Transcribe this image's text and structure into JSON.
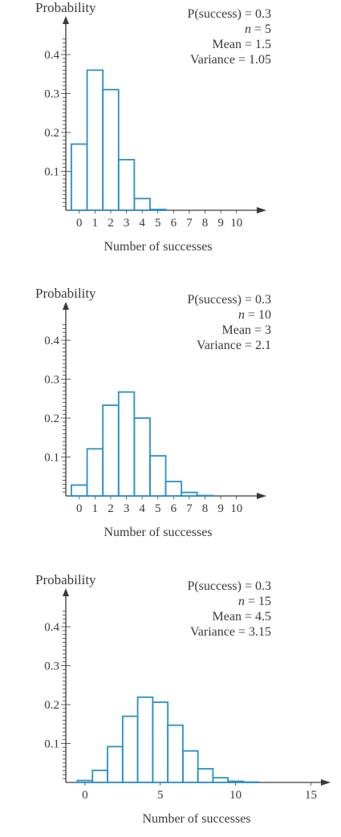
{
  "chart_data": [
    {
      "type": "bar",
      "ylabel": "Probability",
      "xlabel": "Number of successes",
      "annotations": [
        "P(success) = 0.3",
        "n = 5",
        "Mean = 1.5",
        "Variance = 1.05"
      ],
      "x": [
        0,
        1,
        2,
        3,
        4,
        5
      ],
      "values": [
        0.17,
        0.36,
        0.31,
        0.13,
        0.03,
        0.002
      ],
      "xticks": [
        0,
        1,
        2,
        3,
        4,
        5,
        6,
        7,
        8,
        9,
        10
      ],
      "xtick_labels": [
        "0",
        "1",
        "2",
        "3",
        "4",
        "5",
        "6",
        "7",
        "8",
        "9",
        "10"
      ],
      "yticks": [
        0.1,
        0.2,
        0.3,
        0.4
      ],
      "ytick_labels": [
        "0.1",
        "0.2",
        "0.3",
        "0.4"
      ],
      "xlim": [
        -0.5,
        11.8
      ],
      "ylim": [
        0,
        0.45
      ],
      "color": "#2a8fc8"
    },
    {
      "type": "bar",
      "ylabel": "Probability",
      "xlabel": "Number of successes",
      "annotations": [
        "P(success) = 0.3",
        "n = 10",
        "Mean = 3",
        "Variance = 2.1"
      ],
      "x": [
        0,
        1,
        2,
        3,
        4,
        5,
        6,
        7,
        8,
        9,
        10
      ],
      "values": [
        0.028,
        0.121,
        0.233,
        0.267,
        0.2,
        0.103,
        0.037,
        0.009,
        0.001,
        0,
        0
      ],
      "xticks": [
        0,
        1,
        2,
        3,
        4,
        5,
        6,
        7,
        8,
        9,
        10
      ],
      "xtick_labels": [
        "0",
        "1",
        "2",
        "3",
        "4",
        "5",
        "6",
        "7",
        "8",
        "9",
        "10"
      ],
      "yticks": [
        0.1,
        0.2,
        0.3,
        0.4
      ],
      "ytick_labels": [
        "0.1",
        "0.2",
        "0.3",
        "0.4"
      ],
      "xlim": [
        -0.5,
        11.8
      ],
      "ylim": [
        0,
        0.45
      ],
      "color": "#2a8fc8"
    },
    {
      "type": "bar",
      "ylabel": "Probability",
      "xlabel": "Number of successes",
      "annotations": [
        "P(success) = 0.3",
        "n = 15",
        "Mean = 4.5",
        "Variance = 3.15"
      ],
      "x": [
        0,
        1,
        2,
        3,
        4,
        5,
        6,
        7,
        8,
        9,
        10,
        11,
        12,
        13,
        14,
        15
      ],
      "values": [
        0.005,
        0.031,
        0.092,
        0.17,
        0.219,
        0.206,
        0.147,
        0.081,
        0.035,
        0.012,
        0.003,
        0.001,
        0,
        0,
        0,
        0
      ],
      "xticks": [
        0,
        5,
        10,
        15
      ],
      "xtick_labels": [
        "0",
        "5",
        "10",
        "15"
      ],
      "yticks": [
        0.1,
        0.2,
        0.3,
        0.4
      ],
      "ytick_labels": [
        "0.1",
        "0.2",
        "0.3",
        "0.4"
      ],
      "xlim": [
        -0.9,
        16.2
      ],
      "ylim": [
        0,
        0.45
      ],
      "color": "#2a8fc8",
      "minor_yticks": true
    }
  ]
}
